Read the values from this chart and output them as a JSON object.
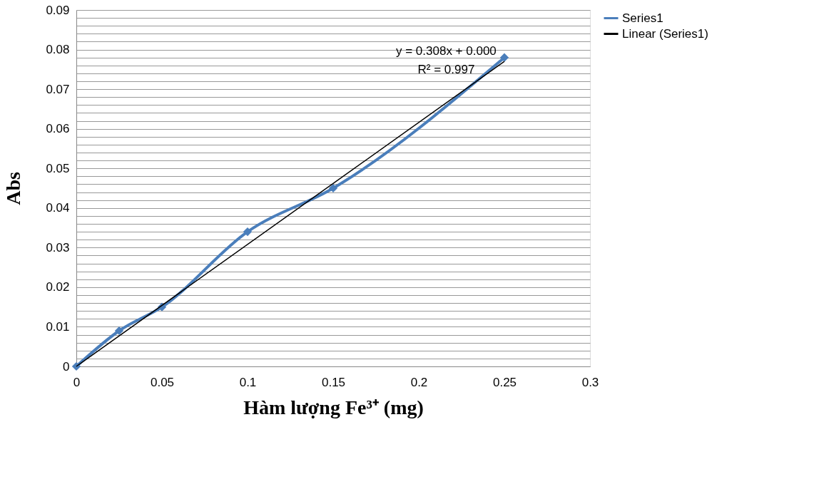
{
  "chart_data": {
    "type": "line",
    "xlabel": "Hàm lượng Fe³⁺ (mg)",
    "ylabel": "Abs",
    "xlim": [
      0,
      0.3
    ],
    "xticks": [
      0,
      0.05,
      0.1,
      0.15,
      0.2,
      0.25,
      0.3
    ],
    "ylim": [
      0,
      0.09
    ],
    "yticks": [
      0,
      {
        "value": 0.002,
        "label": null
      },
      {
        "value": 0.004,
        "label": null
      },
      {
        "value": 0.006,
        "label": null
      },
      {
        "value": 0.008,
        "label": null
      },
      0.01,
      {
        "value": 0.012,
        "label": null
      },
      {
        "value": 0.014,
        "label": null
      },
      {
        "value": 0.016,
        "label": null
      },
      {
        "value": 0.018,
        "label": null
      },
      0.02,
      {
        "value": 0.022,
        "label": null
      },
      {
        "value": 0.024,
        "label": null
      },
      {
        "value": 0.026,
        "label": null
      },
      {
        "value": 0.028,
        "label": null
      },
      0.03,
      {
        "value": 0.032,
        "label": null
      },
      {
        "value": 0.034,
        "label": null
      },
      {
        "value": 0.036,
        "label": null
      },
      {
        "value": 0.038,
        "label": null
      },
      0.04,
      {
        "value": 0.042,
        "label": null
      },
      {
        "value": 0.044,
        "label": null
      },
      {
        "value": 0.046,
        "label": null
      },
      {
        "value": 0.048,
        "label": null
      },
      0.05,
      {
        "value": 0.052,
        "label": null
      },
      {
        "value": 0.054,
        "label": null
      },
      {
        "value": 0.056,
        "label": null
      },
      {
        "value": 0.058,
        "label": null
      },
      0.06,
      {
        "value": 0.062,
        "label": null
      },
      {
        "value": 0.064,
        "label": null
      },
      {
        "value": 0.066,
        "label": null
      },
      {
        "value": 0.068,
        "label": null
      },
      0.07,
      {
        "value": 0.072,
        "label": null
      },
      {
        "value": 0.074,
        "label": null
      },
      {
        "value": 0.076,
        "label": null
      },
      {
        "value": 0.078,
        "label": null
      },
      0.08,
      {
        "value": 0.082,
        "label": null
      },
      {
        "value": 0.084,
        "label": null
      },
      {
        "value": 0.086,
        "label": null
      },
      {
        "value": 0.088,
        "label": null
      },
      0.09
    ],
    "grid": "y",
    "legend": "right",
    "series": [
      {
        "name": "Series1",
        "color": "#4a7ebb",
        "marker": "diamond",
        "x": [
          0,
          0.025,
          0.05,
          0.1,
          0.15,
          0.25
        ],
        "values": [
          0,
          0.009,
          0.015,
          0.034,
          0.045,
          0.078
        ]
      },
      {
        "name": "Linear (Series1)",
        "color": "#000000",
        "marker": "none",
        "x": [
          0,
          0.25
        ],
        "values": [
          0,
          0.077
        ]
      }
    ],
    "annotations": [
      "y = 0.308x + 0.000",
      "R² = 0.997"
    ]
  }
}
